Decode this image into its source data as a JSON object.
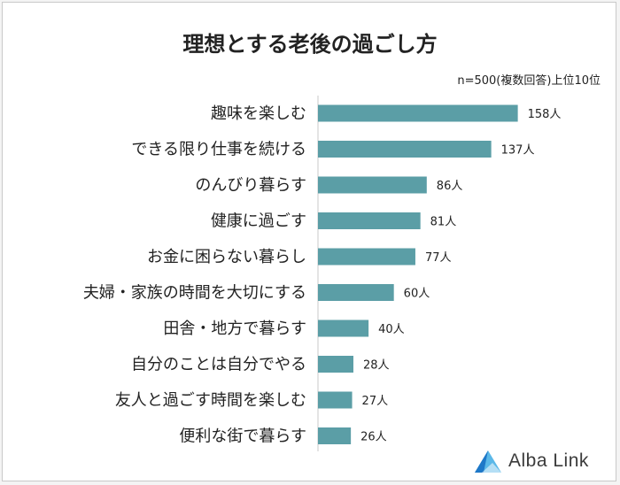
{
  "chart_data": {
    "type": "bar",
    "orientation": "horizontal",
    "title": "理想とする老後の過ごし方",
    "subtitle": "n=500(複数回答)上位10位",
    "categories": [
      "趣味を楽しむ",
      "できる限り仕事を続ける",
      "のんびり暮らす",
      "健康に過ごす",
      "お金に困らない暮らし",
      "夫婦・家族の時間を大切にする",
      "田舎・地方で暮らす",
      "自分のことは自分でやる",
      "友人と過ごす時間を楽しむ",
      "便利な街で暮らす"
    ],
    "values": [
      158,
      137,
      86,
      81,
      77,
      60,
      40,
      28,
      27,
      26
    ],
    "value_labels": [
      "158人",
      "137人",
      "86人",
      "81人",
      "77人",
      "60人",
      "40人",
      "28人",
      "27人",
      "26人"
    ],
    "xlim": [
      0,
      170
    ],
    "grid": false,
    "bar_color": "#5b9ea6"
  },
  "logo": {
    "text": "Alba Link",
    "icon": "triangle-mountain-icon",
    "colors": [
      "#1e78c8",
      "#5bb8e8"
    ]
  }
}
